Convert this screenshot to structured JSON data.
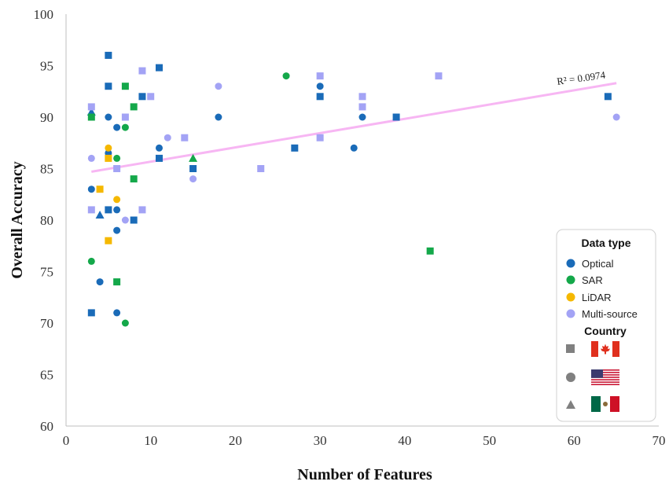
{
  "chart_data": {
    "type": "scatter",
    "xlabel": "Number of Features",
    "ylabel": "Overall Accuracy",
    "xlim": [
      0,
      70
    ],
    "ylim": [
      60,
      100
    ],
    "xticks": [
      "0",
      "10",
      "20",
      "30",
      "40",
      "50",
      "60",
      "70"
    ],
    "yticks": [
      "60",
      "65",
      "70",
      "75",
      "80",
      "85",
      "90",
      "95",
      "100"
    ],
    "grid": false,
    "trendline": {
      "label": "R² = 0.0974",
      "x": [
        3,
        65
      ],
      "y": [
        84.7,
        93.3
      ],
      "color": "#f7b6f3"
    },
    "colors": {
      "Optical": "#1a6bb8",
      "SAR": "#14a84a",
      "LiDAR": "#f5b800",
      "Multi-source": "#a3a3f5"
    },
    "points": [
      {
        "x": 3,
        "y": 90.5,
        "type": "Optical",
        "country": "Mexico"
      },
      {
        "x": 3,
        "y": 83,
        "type": "Optical",
        "country": "USA"
      },
      {
        "x": 3,
        "y": 71,
        "type": "Optical",
        "country": "Canada"
      },
      {
        "x": 4,
        "y": 74,
        "type": "Optical",
        "country": "USA"
      },
      {
        "x": 4,
        "y": 80.5,
        "type": "Optical",
        "country": "Mexico"
      },
      {
        "x": 5,
        "y": 96,
        "type": "Optical",
        "country": "Canada"
      },
      {
        "x": 5,
        "y": 93,
        "type": "Optical",
        "country": "Canada"
      },
      {
        "x": 5,
        "y": 90,
        "type": "Optical",
        "country": "USA"
      },
      {
        "x": 5,
        "y": 86.5,
        "type": "Optical",
        "country": "USA"
      },
      {
        "x": 5,
        "y": 81,
        "type": "Optical",
        "country": "Canada"
      },
      {
        "x": 6,
        "y": 89,
        "type": "Optical",
        "country": "USA"
      },
      {
        "x": 6,
        "y": 81,
        "type": "Optical",
        "country": "USA"
      },
      {
        "x": 6,
        "y": 79,
        "type": "Optical",
        "country": "USA"
      },
      {
        "x": 6,
        "y": 71,
        "type": "Optical",
        "country": "USA"
      },
      {
        "x": 8,
        "y": 80,
        "type": "Optical",
        "country": "Canada"
      },
      {
        "x": 9,
        "y": 92,
        "type": "Optical",
        "country": "Canada"
      },
      {
        "x": 11,
        "y": 94.8,
        "type": "Optical",
        "country": "Canada"
      },
      {
        "x": 11,
        "y": 87,
        "type": "Optical",
        "country": "USA"
      },
      {
        "x": 11,
        "y": 86,
        "type": "Optical",
        "country": "Canada"
      },
      {
        "x": 15,
        "y": 85,
        "type": "Optical",
        "country": "Canada"
      },
      {
        "x": 18,
        "y": 90,
        "type": "Optical",
        "country": "USA"
      },
      {
        "x": 27,
        "y": 87,
        "type": "Optical",
        "country": "Canada"
      },
      {
        "x": 30,
        "y": 93,
        "type": "Optical",
        "country": "USA"
      },
      {
        "x": 30,
        "y": 92,
        "type": "Optical",
        "country": "Canada"
      },
      {
        "x": 34,
        "y": 87,
        "type": "Optical",
        "country": "USA"
      },
      {
        "x": 35,
        "y": 90,
        "type": "Optical",
        "country": "USA"
      },
      {
        "x": 39,
        "y": 90,
        "type": "Optical",
        "country": "Canada"
      },
      {
        "x": 64,
        "y": 92,
        "type": "Optical",
        "country": "Canada"
      },
      {
        "x": 3,
        "y": 90,
        "type": "SAR",
        "country": "Canada"
      },
      {
        "x": 3,
        "y": 76,
        "type": "SAR",
        "country": "USA"
      },
      {
        "x": 6,
        "y": 86,
        "type": "SAR",
        "country": "USA"
      },
      {
        "x": 6,
        "y": 74,
        "type": "SAR",
        "country": "Canada"
      },
      {
        "x": 7,
        "y": 93,
        "type": "SAR",
        "country": "Canada"
      },
      {
        "x": 7,
        "y": 89,
        "type": "SAR",
        "country": "USA"
      },
      {
        "x": 7,
        "y": 70,
        "type": "SAR",
        "country": "USA"
      },
      {
        "x": 8,
        "y": 91,
        "type": "SAR",
        "country": "Canada"
      },
      {
        "x": 8,
        "y": 84,
        "type": "SAR",
        "country": "Canada"
      },
      {
        "x": 15,
        "y": 86,
        "type": "SAR",
        "country": "Mexico"
      },
      {
        "x": 26,
        "y": 94,
        "type": "SAR",
        "country": "USA"
      },
      {
        "x": 43,
        "y": 77,
        "type": "SAR",
        "country": "Canada"
      },
      {
        "x": 4,
        "y": 83,
        "type": "LiDAR",
        "country": "Canada"
      },
      {
        "x": 5,
        "y": 87,
        "type": "LiDAR",
        "country": "USA"
      },
      {
        "x": 5,
        "y": 86,
        "type": "LiDAR",
        "country": "Canada"
      },
      {
        "x": 5,
        "y": 78,
        "type": "LiDAR",
        "country": "Canada"
      },
      {
        "x": 6,
        "y": 82,
        "type": "LiDAR",
        "country": "USA"
      },
      {
        "x": 3,
        "y": 91,
        "type": "Multi-source",
        "country": "Canada"
      },
      {
        "x": 3,
        "y": 86,
        "type": "Multi-source",
        "country": "USA"
      },
      {
        "x": 3,
        "y": 81,
        "type": "Multi-source",
        "country": "Canada"
      },
      {
        "x": 6,
        "y": 85,
        "type": "Multi-source",
        "country": "Canada"
      },
      {
        "x": 7,
        "y": 90,
        "type": "Multi-source",
        "country": "Canada"
      },
      {
        "x": 7,
        "y": 80,
        "type": "Multi-source",
        "country": "USA"
      },
      {
        "x": 9,
        "y": 94.5,
        "type": "Multi-source",
        "country": "Canada"
      },
      {
        "x": 9,
        "y": 81,
        "type": "Multi-source",
        "country": "Canada"
      },
      {
        "x": 10,
        "y": 92,
        "type": "Multi-source",
        "country": "Canada"
      },
      {
        "x": 12,
        "y": 88,
        "type": "Multi-source",
        "country": "USA"
      },
      {
        "x": 14,
        "y": 88,
        "type": "Multi-source",
        "country": "Canada"
      },
      {
        "x": 15,
        "y": 84,
        "type": "Multi-source",
        "country": "USA"
      },
      {
        "x": 18,
        "y": 93,
        "type": "Multi-source",
        "country": "USA"
      },
      {
        "x": 23,
        "y": 85,
        "type": "Multi-source",
        "country": "Canada"
      },
      {
        "x": 30,
        "y": 94,
        "type": "Multi-source",
        "country": "Canada"
      },
      {
        "x": 30,
        "y": 88,
        "type": "Multi-source",
        "country": "Canada"
      },
      {
        "x": 35,
        "y": 92,
        "type": "Multi-source",
        "country": "Canada"
      },
      {
        "x": 35,
        "y": 91,
        "type": "Multi-source",
        "country": "Canada"
      },
      {
        "x": 44,
        "y": 94,
        "type": "Multi-source",
        "country": "Canada"
      },
      {
        "x": 65,
        "y": 90,
        "type": "Multi-source",
        "country": "USA"
      }
    ],
    "legend": {
      "placement": "bottom-right",
      "data_type_title": "Data type",
      "data_types": [
        "Optical",
        "SAR",
        "LiDAR",
        "Multi-source"
      ],
      "country_title": "Country",
      "countries": [
        {
          "name": "Canada",
          "shape": "square",
          "flag": "canada-flag"
        },
        {
          "name": "USA",
          "shape": "circle",
          "flag": "usa-flag"
        },
        {
          "name": "Mexico",
          "shape": "triangle",
          "flag": "mexico-flag"
        }
      ]
    }
  }
}
